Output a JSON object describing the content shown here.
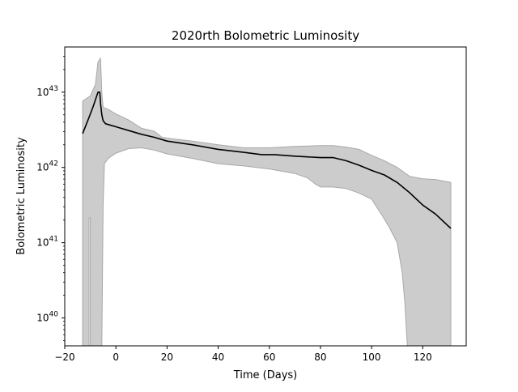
{
  "chart_data": {
    "type": "line",
    "title": "2020rth Bolometric Luminosity",
    "xlabel": "Time (Days)",
    "ylabel": "Bolometric Luminosity",
    "xlim": [
      -20,
      137
    ],
    "ylim_log10": [
      39.63,
      43.6
    ],
    "yscale": "log",
    "grid": false,
    "x_ticks": [
      -20,
      0,
      20,
      40,
      60,
      80,
      100,
      120
    ],
    "x_tick_labels": [
      "−20",
      "0",
      "20",
      "40",
      "60",
      "80",
      "100",
      "120"
    ],
    "y_ticks_log10": [
      40,
      41,
      42,
      43
    ],
    "y_tick_labels": [
      {
        "base": "10",
        "exp": "40"
      },
      {
        "base": "10",
        "exp": "41"
      },
      {
        "base": "10",
        "exp": "42"
      },
      {
        "base": "10",
        "exp": "43"
      }
    ],
    "colors": {
      "line": "#000000",
      "band_fill": "#cccccc",
      "band_edge": "#a8a8a8"
    },
    "series": [
      {
        "values_log10": [
          [
            -13,
            42.45
          ],
          [
            -11,
            42.62
          ],
          [
            -9,
            42.8
          ],
          [
            -7,
            43.0
          ],
          [
            -6.3,
            43.0
          ],
          [
            -6,
            42.85
          ],
          [
            -5.5,
            42.7
          ],
          [
            -5,
            42.62
          ],
          [
            -4,
            42.58
          ],
          [
            -2,
            42.56
          ],
          [
            0,
            42.54
          ],
          [
            5,
            42.49
          ],
          [
            10,
            42.44
          ],
          [
            15,
            42.4
          ],
          [
            20,
            42.35
          ],
          [
            30,
            42.3
          ],
          [
            40,
            42.24
          ],
          [
            50,
            42.2
          ],
          [
            57,
            42.17
          ],
          [
            62,
            42.17
          ],
          [
            70,
            42.15
          ],
          [
            80,
            42.13
          ],
          [
            85,
            42.13
          ],
          [
            90,
            42.09
          ],
          [
            95,
            42.03
          ],
          [
            100,
            41.96
          ],
          [
            105,
            41.9
          ],
          [
            110,
            41.8
          ],
          [
            115,
            41.66
          ],
          [
            120,
            41.5
          ],
          [
            125,
            41.38
          ],
          [
            131,
            41.19
          ]
        ]
      }
    ],
    "band_upper_log10": [
      [
        -13,
        42.88
      ],
      [
        -10,
        42.95
      ],
      [
        -8,
        43.1
      ],
      [
        -7,
        43.4
      ],
      [
        -6,
        43.45
      ],
      [
        -5.5,
        43.0
      ],
      [
        -5,
        42.8
      ],
      [
        -3,
        42.77
      ],
      [
        0,
        42.71
      ],
      [
        5,
        42.63
      ],
      [
        10,
        42.52
      ],
      [
        15,
        42.48
      ],
      [
        18,
        42.4
      ],
      [
        22,
        42.38
      ],
      [
        30,
        42.35
      ],
      [
        40,
        42.3
      ],
      [
        50,
        42.26
      ],
      [
        60,
        42.26
      ],
      [
        70,
        42.28
      ],
      [
        80,
        42.29
      ],
      [
        85,
        42.29
      ],
      [
        90,
        42.27
      ],
      [
        95,
        42.24
      ],
      [
        100,
        42.16
      ],
      [
        105,
        42.09
      ],
      [
        110,
        42.0
      ],
      [
        115,
        41.88
      ],
      [
        120,
        41.85
      ],
      [
        125,
        41.84
      ],
      [
        131,
        41.8
      ]
    ],
    "band_lower_log10": [
      [
        131,
        39.63
      ],
      [
        114,
        39.63
      ],
      [
        113,
        40.2
      ],
      [
        112,
        40.6
      ],
      [
        110,
        41.0
      ],
      [
        107,
        41.2
      ],
      [
        104,
        41.37
      ],
      [
        100,
        41.58
      ],
      [
        95,
        41.66
      ],
      [
        90,
        41.72
      ],
      [
        85,
        41.74
      ],
      [
        80,
        41.74
      ],
      [
        78,
        41.78
      ],
      [
        75,
        41.86
      ],
      [
        70,
        41.92
      ],
      [
        60,
        41.98
      ],
      [
        50,
        42.02
      ],
      [
        40,
        42.05
      ],
      [
        30,
        42.12
      ],
      [
        20,
        42.18
      ],
      [
        15,
        42.23
      ],
      [
        10,
        42.26
      ],
      [
        5,
        42.25
      ],
      [
        0,
        42.19
      ],
      [
        -3,
        42.12
      ],
      [
        -4.5,
        42.05
      ],
      [
        -5,
        41.5
      ],
      [
        -5.5,
        39.63
      ],
      [
        -10,
        39.63
      ],
      [
        -10,
        41.33
      ],
      [
        -10.5,
        41.33
      ],
      [
        -10.5,
        39.63
      ],
      [
        -13,
        39.63
      ]
    ]
  }
}
